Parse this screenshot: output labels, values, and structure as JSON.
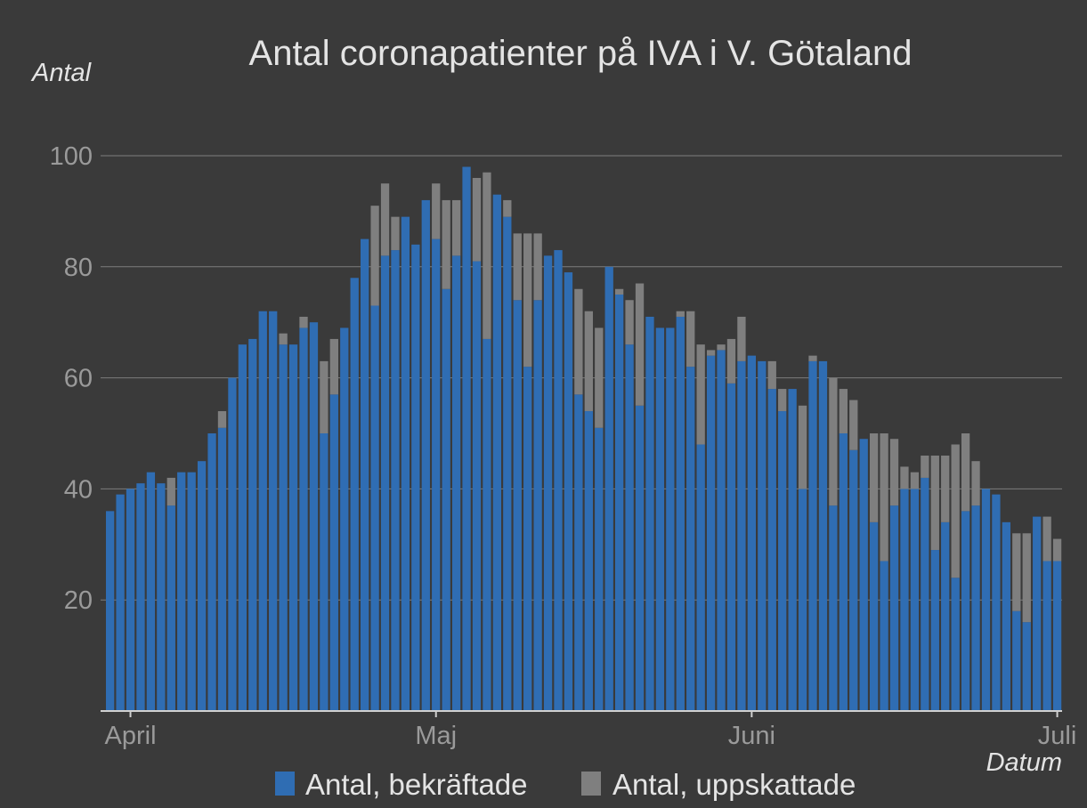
{
  "chart_data": {
    "type": "bar",
    "stacked": true,
    "title": "Antal coronapatienter på IVA i V. Götaland",
    "ylabel": "Antal",
    "xlabel": "Datum",
    "ylim": [
      0,
      100
    ],
    "yticks": [
      20,
      40,
      60,
      80,
      100
    ],
    "grid": true,
    "legend_position": "bottom",
    "month_ticks": [
      {
        "label": "April",
        "day_index": 2
      },
      {
        "label": "Maj",
        "day_index": 32
      },
      {
        "label": "Juni",
        "day_index": 63
      },
      {
        "label": "Juli",
        "day_index": 93
      }
    ],
    "series": [
      {
        "name": "Antal, bekräftade",
        "color": "#2f6db3",
        "values": [
          36,
          39,
          40,
          41,
          43,
          41,
          37,
          43,
          43,
          45,
          50,
          51,
          60,
          66,
          67,
          72,
          72,
          66,
          66,
          69,
          70,
          50,
          57,
          69,
          78,
          85,
          73,
          82,
          83,
          89,
          84,
          92,
          85,
          76,
          82,
          98,
          81,
          67,
          93,
          89,
          74,
          62,
          74,
          82,
          83,
          79,
          57,
          54,
          51,
          80,
          75,
          66,
          55,
          71,
          69,
          69,
          71,
          62,
          48,
          64,
          65,
          59,
          63,
          64,
          63,
          58,
          54,
          58,
          40,
          63,
          63,
          37,
          50,
          47,
          49,
          34,
          27,
          37,
          40,
          40,
          42,
          29,
          34,
          24,
          36,
          37,
          40,
          39,
          34,
          18,
          16,
          35,
          27,
          27
        ]
      },
      {
        "name": "Antal, uppskattade",
        "color": "#7f7f7f",
        "values": [
          0,
          0,
          0,
          0,
          0,
          0,
          5,
          0,
          0,
          0,
          0,
          3,
          0,
          0,
          0,
          0,
          0,
          2,
          0,
          2,
          0,
          13,
          10,
          0,
          0,
          0,
          18,
          13,
          6,
          0,
          0,
          0,
          10,
          16,
          10,
          0,
          15,
          30,
          0,
          3,
          12,
          24,
          12,
          0,
          0,
          0,
          19,
          18,
          18,
          0,
          1,
          8,
          22,
          0,
          0,
          0,
          1,
          10,
          18,
          1,
          1,
          8,
          8,
          0,
          0,
          5,
          4,
          0,
          15,
          1,
          0,
          23,
          8,
          9,
          0,
          16,
          23,
          12,
          4,
          3,
          4,
          17,
          12,
          24,
          14,
          8,
          0,
          0,
          0,
          14,
          16,
          0,
          8,
          4
        ]
      }
    ]
  }
}
